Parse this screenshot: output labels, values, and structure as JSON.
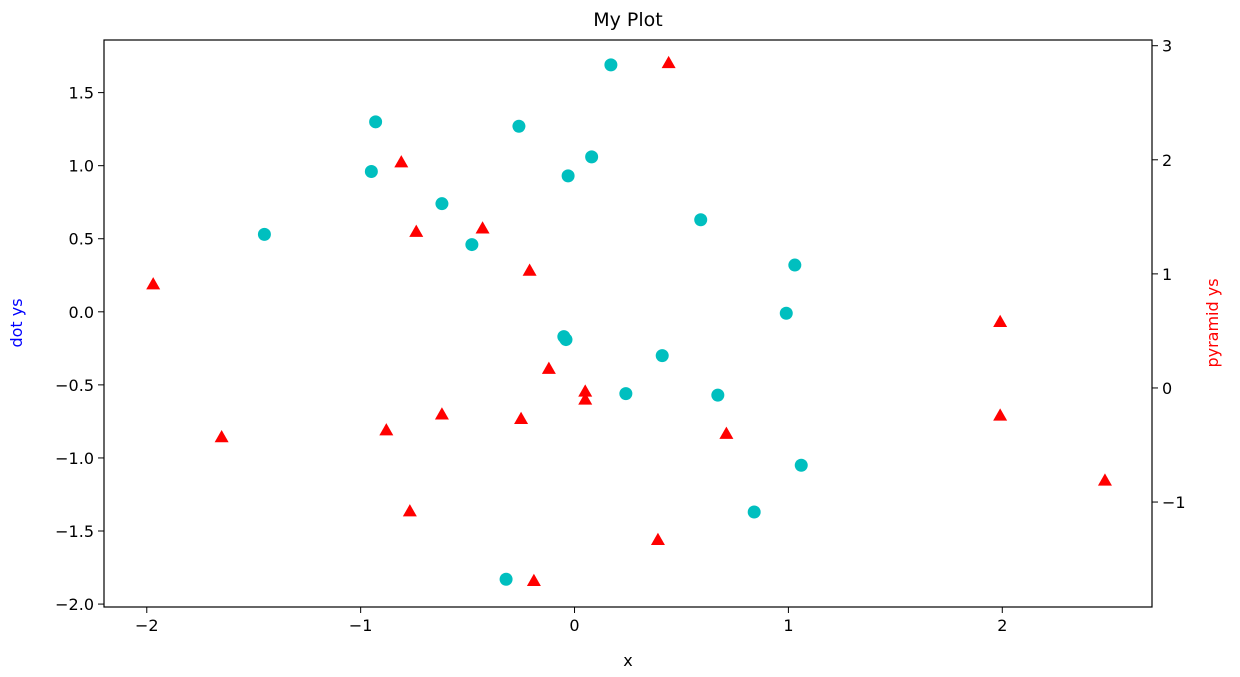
{
  "chart_data": {
    "type": "scatter",
    "title": "My Plot",
    "xlabel": "x",
    "ylabel_left": "dot ys",
    "ylabel_right": "pyramid ys",
    "xlim": [
      -2.2,
      2.7
    ],
    "ylim_left": [
      -2.02,
      1.86
    ],
    "ylim_right": [
      -1.92,
      3.05
    ],
    "xticks": [
      {
        "value": -2,
        "label": "−2"
      },
      {
        "value": -1,
        "label": "−1"
      },
      {
        "value": 0,
        "label": "0"
      },
      {
        "value": 1,
        "label": "1"
      },
      {
        "value": 2,
        "label": "2"
      }
    ],
    "yticks_left": [
      {
        "value": 1.5,
        "label": "1.5"
      },
      {
        "value": 1.0,
        "label": "1.0"
      },
      {
        "value": 0.5,
        "label": "0.5"
      },
      {
        "value": 0.0,
        "label": "0.0"
      },
      {
        "value": -0.5,
        "label": "−0.5"
      },
      {
        "value": -1.0,
        "label": "−1.0"
      },
      {
        "value": -1.5,
        "label": "−1.5"
      },
      {
        "value": -2.0,
        "label": "−2.0"
      }
    ],
    "yticks_right": [
      {
        "value": 3,
        "label": "3"
      },
      {
        "value": 2,
        "label": "2"
      },
      {
        "value": 1,
        "label": "1"
      },
      {
        "value": 0,
        "label": "0"
      },
      {
        "value": -1,
        "label": "−1"
      }
    ],
    "grid": false,
    "colors": {
      "dots": "#00bfbf",
      "pyramids": "#ff0000",
      "left_label": "#0000ff",
      "right_label": "#ff0000"
    },
    "series": [
      {
        "axis": "left",
        "marker": "circle",
        "x": [
          0.17,
          -0.93,
          -0.26,
          0.08,
          -0.95,
          -0.03,
          -0.62,
          -1.45,
          0.59,
          -0.48,
          1.03,
          0.99,
          -0.05,
          -0.04,
          0.41,
          0.24,
          0.67,
          1.06,
          0.84,
          -0.32
        ],
        "y": [
          1.69,
          1.3,
          1.27,
          1.06,
          0.96,
          0.93,
          0.74,
          0.53,
          0.63,
          0.46,
          0.32,
          -0.01,
          -0.17,
          -0.19,
          -0.3,
          -0.56,
          -0.57,
          -1.05,
          -1.37,
          -1.83
        ]
      },
      {
        "axis": "right",
        "marker": "triangle",
        "x": [
          0.44,
          -0.81,
          -0.43,
          -0.74,
          -0.21,
          -1.97,
          1.99,
          -0.12,
          0.05,
          0.05,
          -0.62,
          -0.88,
          -0.25,
          0.71,
          -1.65,
          1.99,
          -0.77,
          0.39,
          -0.19,
          2.48
        ],
        "y": [
          2.85,
          1.98,
          1.4,
          1.37,
          1.03,
          0.91,
          0.58,
          0.17,
          -0.03,
          -0.1,
          -0.23,
          -0.37,
          -0.27,
          -0.4,
          -0.43,
          -0.24,
          -1.08,
          -1.33,
          -1.69,
          -0.81
        ]
      }
    ]
  }
}
